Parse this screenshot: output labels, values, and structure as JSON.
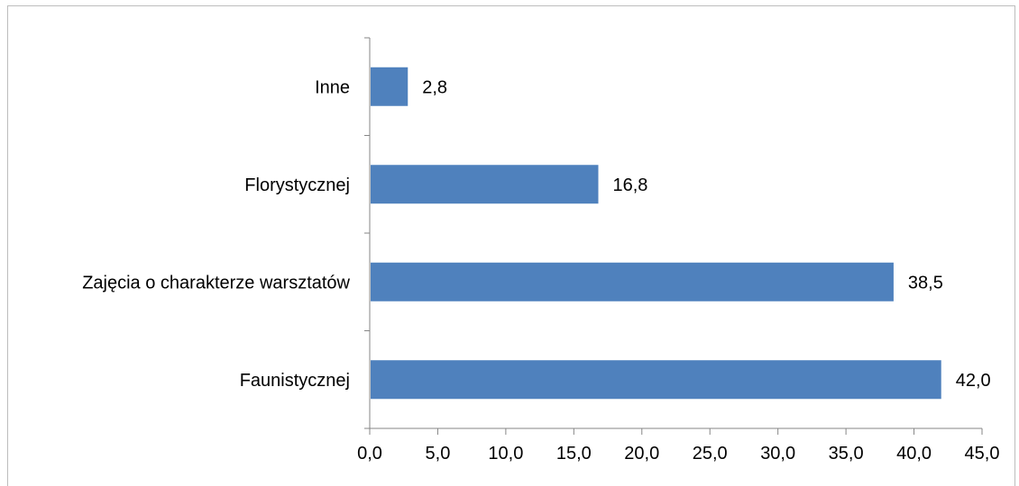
{
  "chart_data": {
    "type": "bar",
    "orientation": "horizontal",
    "categories": [
      "Faunistycznej",
      "Zajęcia o charakterze warsztatów",
      "Florystycznej",
      "Inne"
    ],
    "values": [
      42.0,
      38.5,
      16.8,
      2.8
    ],
    "value_labels": [
      "42,0",
      "38,5",
      "16,8",
      "2,8"
    ],
    "xlim": [
      0,
      45
    ],
    "x_ticks": [
      0,
      5,
      10,
      15,
      20,
      25,
      30,
      35,
      40,
      45
    ],
    "x_tick_labels": [
      "0,0",
      "5,0",
      "10,0",
      "15,0",
      "20,0",
      "25,0",
      "30,0",
      "35,0",
      "40,0",
      "45,0"
    ],
    "title": "",
    "xlabel": "",
    "ylabel": "",
    "grid": false,
    "legend": "none",
    "bar_color": "#4f81bd",
    "axis_color": "#868686"
  }
}
